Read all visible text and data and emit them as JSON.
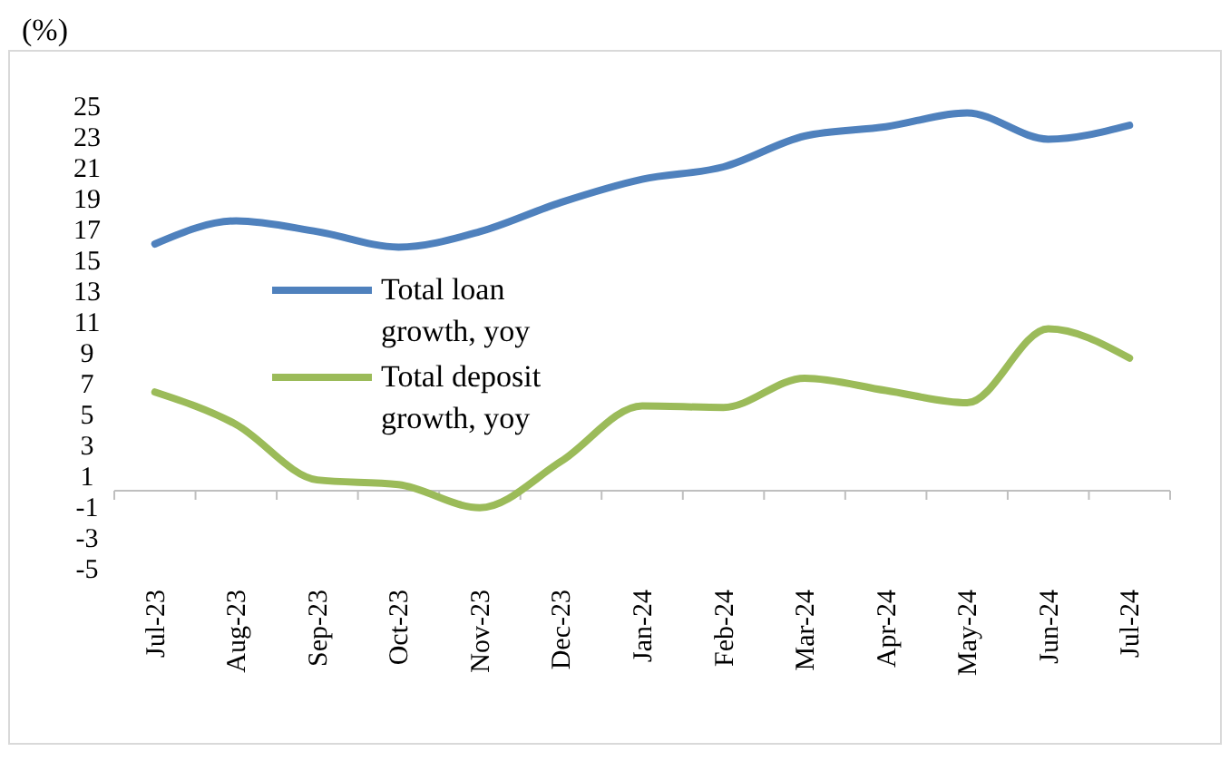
{
  "chart_data": {
    "type": "line",
    "ylabel": "(%)",
    "categories": [
      "Jul-23",
      "Aug-23",
      "Sep-23",
      "Oct-23",
      "Nov-23",
      "Dec-23",
      "Jan-24",
      "Feb-24",
      "Mar-24",
      "Apr-24",
      "May-24",
      "Jun-24",
      "Jul-24"
    ],
    "series": [
      {
        "name": "Total loan growth, yoy",
        "color": "#4f81bd",
        "values": [
          16,
          17.5,
          16.8,
          15.8,
          16.8,
          18.7,
          20.2,
          21,
          23,
          23.6,
          24.5,
          22.8,
          23.7
        ]
      },
      {
        "name": "Total deposit growth, yoy",
        "color": "#9bbb59",
        "values": [
          6.4,
          4.3,
          0.7,
          0.4,
          -1.1,
          1.9,
          5.5,
          5.4,
          7.3,
          6.5,
          5.7,
          10.5,
          8.6
        ]
      }
    ],
    "ylim": [
      -5,
      25
    ],
    "yticks": [
      -5,
      -3,
      -1,
      1,
      3,
      5,
      7,
      9,
      11,
      13,
      15,
      17,
      19,
      21,
      23,
      25
    ],
    "grid": false,
    "legend": "left",
    "marker": "none",
    "line_style": "solid"
  }
}
